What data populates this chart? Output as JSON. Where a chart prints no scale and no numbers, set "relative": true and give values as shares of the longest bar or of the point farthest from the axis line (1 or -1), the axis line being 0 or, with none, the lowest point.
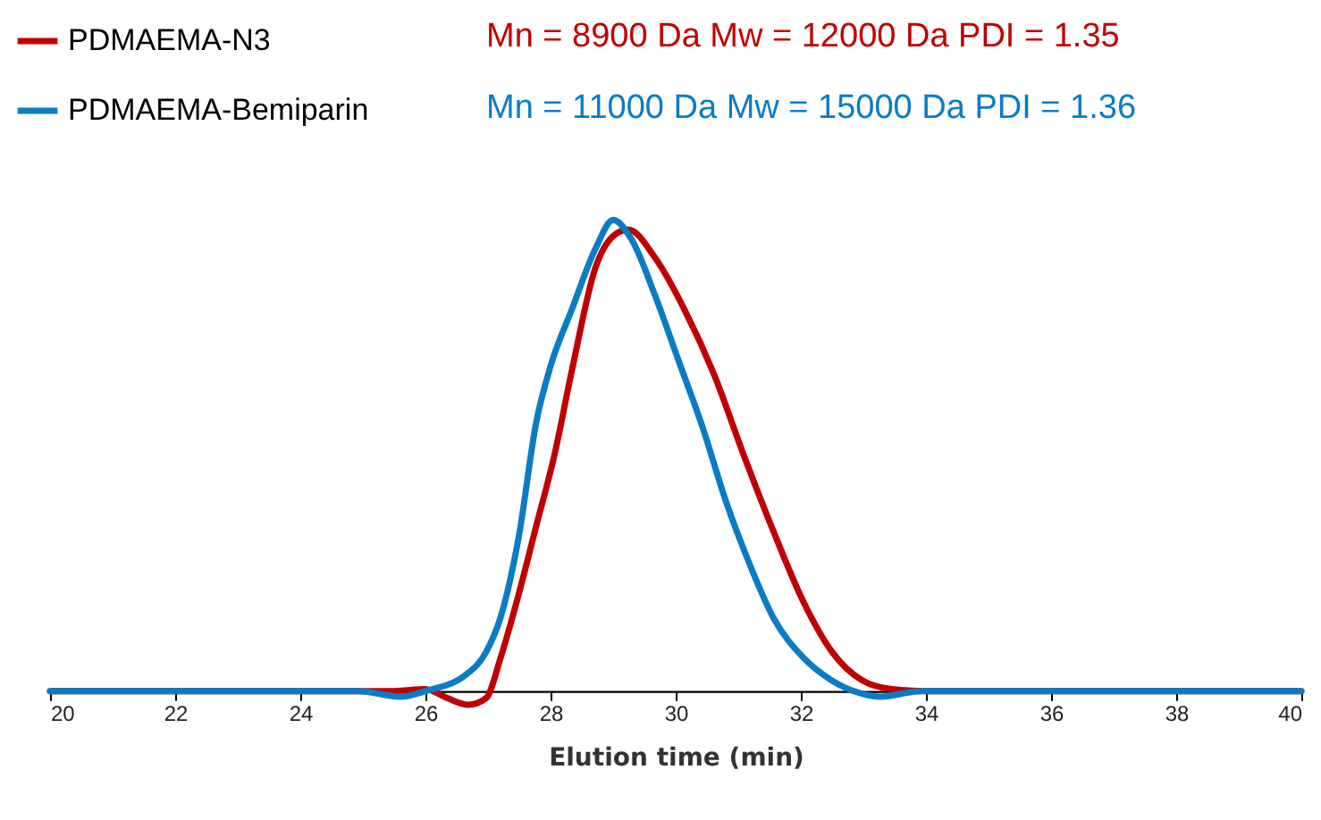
{
  "chart_data": {
    "type": "line",
    "relative": true,
    "xlabel": "Elution time (min)",
    "xlim": [
      20,
      40
    ],
    "xticks": [
      20,
      22,
      24,
      26,
      28,
      30,
      32,
      34,
      36,
      38,
      40
    ],
    "legend": "top left",
    "line_style": "solid",
    "marker": "none",
    "annotations": [
      "Mn = 8900 Da Mw = 12000 Da PDI = 1.35",
      "Mn = 11000 Da Mw = 15000 Da PDI = 1.36"
    ],
    "series": [
      {
        "name": "PDMAEMA-N3",
        "color": "#c00000",
        "x": [
          20,
          25.5,
          26,
          26.35,
          26.68,
          26.97,
          27.2,
          27.49,
          27.77,
          28.06,
          28.34,
          28.72,
          29.0,
          29.24,
          29.67,
          30.14,
          30.62,
          31.09,
          31.56,
          32.04,
          32.5,
          32.99,
          33.46,
          34.03,
          40
        ],
        "values": [
          0,
          0,
          0.004,
          -0.015,
          -0.029,
          -0.015,
          0.07,
          0.205,
          0.35,
          0.5,
          0.68,
          0.9,
          0.966,
          0.98,
          0.92,
          0.81,
          0.67,
          0.5,
          0.34,
          0.19,
          0.083,
          0.022,
          0.004,
          0,
          0
        ]
      },
      {
        "name": "PDMAEMA-Bemiparin",
        "color": "#0a7cc4",
        "x": [
          20,
          24.93,
          25.6,
          26,
          26.64,
          26.97,
          27.2,
          27.49,
          27.77,
          28,
          28.34,
          28.72,
          29.0,
          29.29,
          29.67,
          30.05,
          30.43,
          30.81,
          31.18,
          31.56,
          32.04,
          32.5,
          32.99,
          33.27,
          33.93,
          40
        ],
        "values": [
          0,
          0,
          -0.012,
          0,
          0.034,
          0.083,
          0.156,
          0.326,
          0.57,
          0.69,
          0.81,
          0.94,
          1,
          0.96,
          0.84,
          0.7,
          0.56,
          0.4,
          0.27,
          0.156,
          0.071,
          0.022,
          -0.006,
          -0.012,
          0,
          0
        ]
      }
    ]
  }
}
